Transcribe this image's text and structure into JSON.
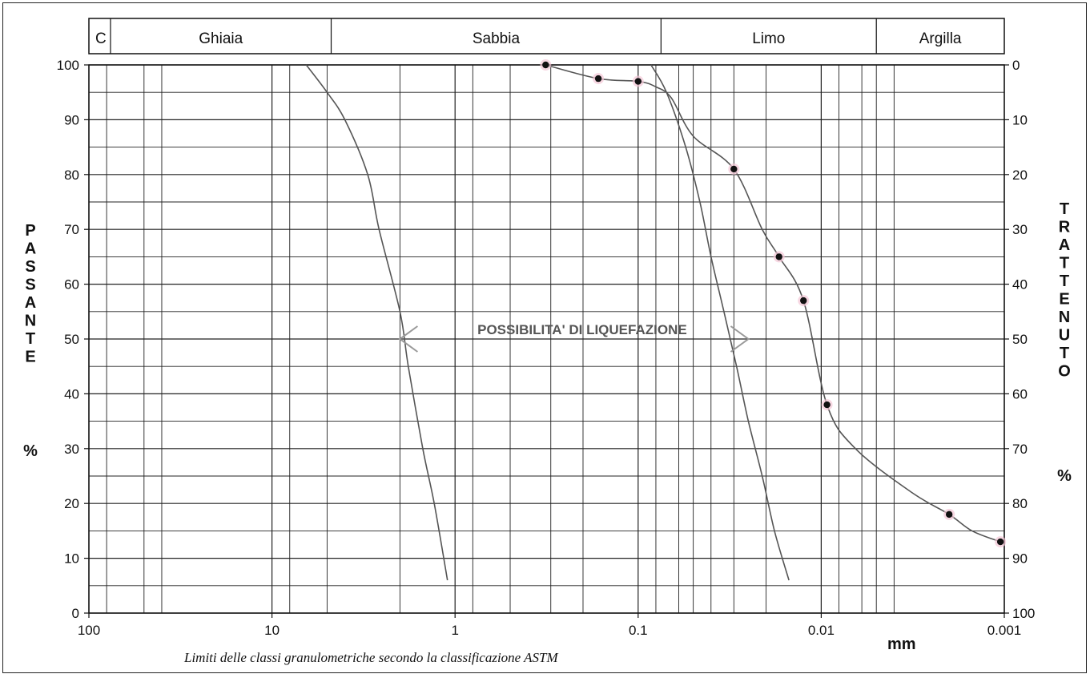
{
  "chart_data": {
    "type": "line",
    "x_scale": "log",
    "x_reversed": true,
    "xlim": [
      100,
      0.001
    ],
    "ylim": [
      0,
      100
    ],
    "x_ticks": [
      {
        "value": 100,
        "label": "100"
      },
      {
        "value": 10,
        "label": "10"
      },
      {
        "value": 1,
        "label": "1"
      },
      {
        "value": 0.1,
        "label": "0.1"
      },
      {
        "value": 0.01,
        "label": "0.01"
      },
      {
        "value": 0.001,
        "label": "0.001"
      }
    ],
    "y_left_ticks": [
      "0",
      "10",
      "20",
      "30",
      "40",
      "50",
      "60",
      "70",
      "80",
      "90",
      "100"
    ],
    "y_right_ticks": [
      "100",
      "90",
      "80",
      "70",
      "60",
      "50",
      "40",
      "30",
      "20",
      "10",
      "0"
    ],
    "y_left_label_letters": [
      "P",
      "A",
      "S",
      "S",
      "A",
      "N",
      "T",
      "E"
    ],
    "y_left_unit": "%",
    "y_right_label_letters": [
      "T",
      "R",
      "A",
      "T",
      "T",
      "E",
      "N",
      "U",
      "T",
      "O"
    ],
    "y_right_unit": "%",
    "x_unit": "mm",
    "caption": "Limiti delle classi granulometriche secondo la classificazione ASTM",
    "classes": [
      {
        "label": "C",
        "from": 100,
        "to": 76.2
      },
      {
        "label": "Ghiaia",
        "from": 76.2,
        "to": 4.75
      },
      {
        "label": "Sabbia",
        "from": 4.75,
        "to": 0.075
      },
      {
        "label": "Limo",
        "from": 0.075,
        "to": 0.005
      },
      {
        "label": "Argilla",
        "from": 0.005,
        "to": 0.001
      }
    ],
    "minor_gridlines_x": [
      80,
      50,
      40,
      8,
      5,
      2,
      0.8,
      0.5,
      0.3,
      0.2,
      0.08,
      0.06,
      0.05,
      0.04,
      0.03,
      0.02,
      0.01,
      0.008,
      0.006,
      0.005,
      0.004
    ],
    "annotation": {
      "text": "POSSIBILITA' DI LIQUEFAZIONE",
      "y": 50,
      "x_left": 2.0,
      "x_right": 0.025
    },
    "grid": true,
    "series": [
      {
        "x": [
          6.5,
          5.0,
          4.0,
          3.0,
          2.6,
          2.0,
          1.8,
          1.5,
          1.3,
          1.1
        ],
        "y": [
          100,
          95,
          90,
          80,
          70,
          55,
          45,
          30,
          20,
          6
        ],
        "markers": false
      },
      {
        "x": [
          0.085,
          0.07,
          0.055,
          0.046,
          0.04,
          0.034,
          0.029,
          0.025,
          0.021,
          0.018,
          0.015
        ],
        "y": [
          100,
          95,
          85,
          75,
          65,
          55,
          45,
          35,
          25,
          15,
          6
        ],
        "markers": false
      },
      {
        "x": [
          0.32,
          0.165,
          0.1,
          0.08,
          0.066,
          0.05,
          0.03,
          0.021,
          0.017,
          0.0125,
          0.0093,
          0.0065,
          0.0032,
          0.002,
          0.0015,
          0.00105
        ],
        "y": [
          100,
          97.5,
          97,
          96,
          94,
          87,
          81,
          70,
          65,
          57,
          38,
          30,
          22,
          18,
          15,
          13
        ],
        "markers": [
          true,
          true,
          true,
          false,
          false,
          false,
          true,
          false,
          true,
          true,
          true,
          false,
          false,
          true,
          false,
          true
        ]
      }
    ]
  }
}
